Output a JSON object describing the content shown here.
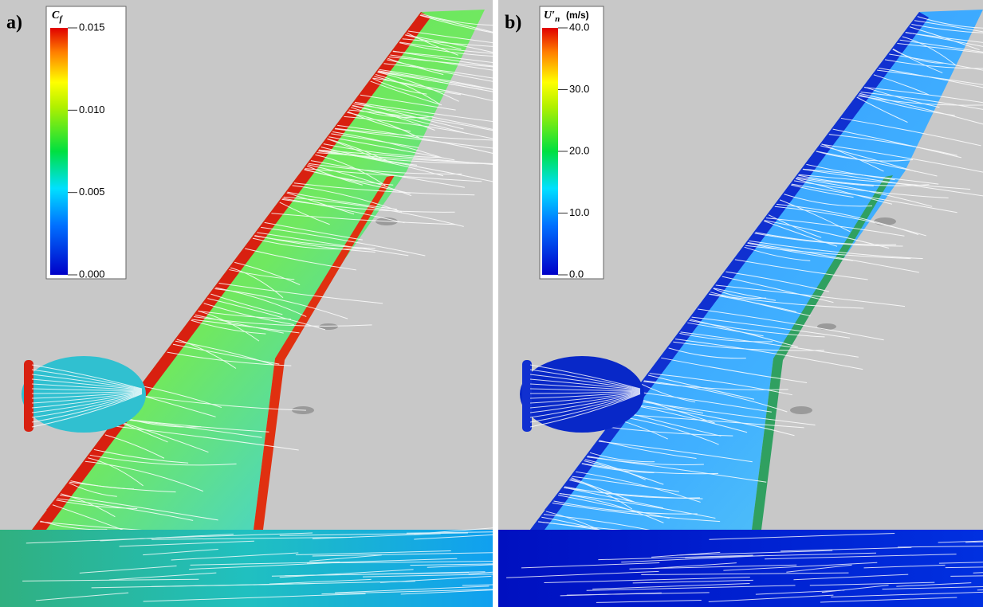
{
  "panels": [
    {
      "label": "a)",
      "colorbar": {
        "symbol": "C",
        "subscript": "f",
        "lim": [
          0,
          0.015
        ],
        "ticks": [
          {
            "value": 0.015,
            "label": "0.015"
          },
          {
            "value": 0.01,
            "label": "0.010"
          },
          {
            "value": 0.005,
            "label": "0.005"
          },
          {
            "value": 0,
            "label": "0.000"
          }
        ]
      }
    },
    {
      "label": "b)",
      "colorbar": {
        "symbol": "U′",
        "subscript": "n",
        "unit": "(m/s)",
        "lim": [
          0,
          40
        ],
        "ticks": [
          {
            "value": 40,
            "label": "40.0"
          },
          {
            "value": 30,
            "label": "30.0"
          },
          {
            "value": 20,
            "label": "20.0"
          },
          {
            "value": 10,
            "label": "10.0"
          },
          {
            "value": 0,
            "label": "0.0"
          }
        ]
      }
    }
  ]
}
